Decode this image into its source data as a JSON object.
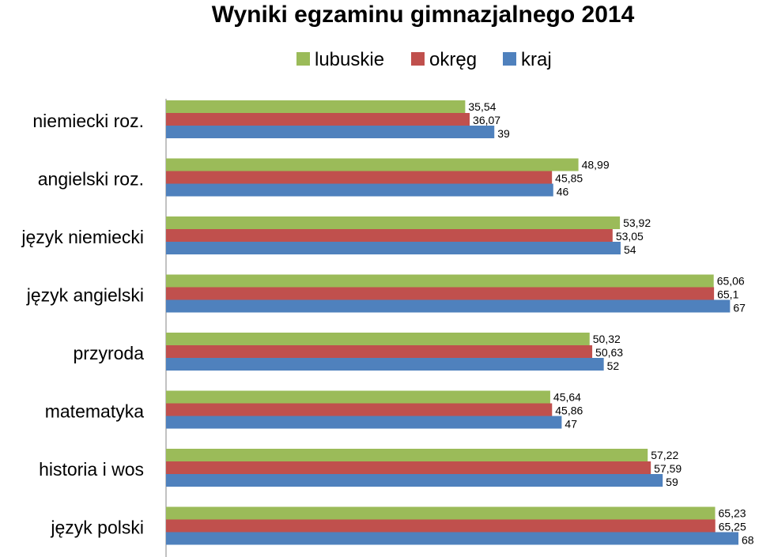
{
  "chart_data": {
    "type": "bar",
    "orientation": "horizontal",
    "title": "Wyniki egzaminu gimnazjalnego 2014",
    "categories": [
      "niemiecki roz.",
      "angielski roz.",
      "język niemiecki",
      "język angielski",
      "przyroda",
      "matematyka",
      "historia i wos",
      "język polski"
    ],
    "series": [
      {
        "name": "lubuskie",
        "color": "#9BBB59",
        "values": [
          35.54,
          48.99,
          53.92,
          65.06,
          50.32,
          45.64,
          57.22,
          65.23
        ],
        "labels": [
          "35,54",
          "48,99",
          "53,92",
          "65,06",
          "50,32",
          "45,64",
          "57,22",
          "65,23"
        ]
      },
      {
        "name": "okręg",
        "color": "#C0504D",
        "values": [
          36.07,
          45.85,
          53.05,
          65.1,
          50.63,
          45.86,
          57.59,
          65.25
        ],
        "labels": [
          "36,07",
          "45,85",
          "53,05",
          "65,1",
          "50,63",
          "45,86",
          "57,59",
          "65,25"
        ]
      },
      {
        "name": "kraj",
        "color": "#4F81BD",
        "values": [
          39,
          46,
          54,
          67,
          52,
          47,
          59,
          68
        ],
        "labels": [
          "39",
          "46",
          "54",
          "67",
          "52",
          "47",
          "59",
          "68"
        ]
      }
    ],
    "legend_position": "top",
    "gridlines": false,
    "xlim": [
      0,
      68
    ]
  }
}
